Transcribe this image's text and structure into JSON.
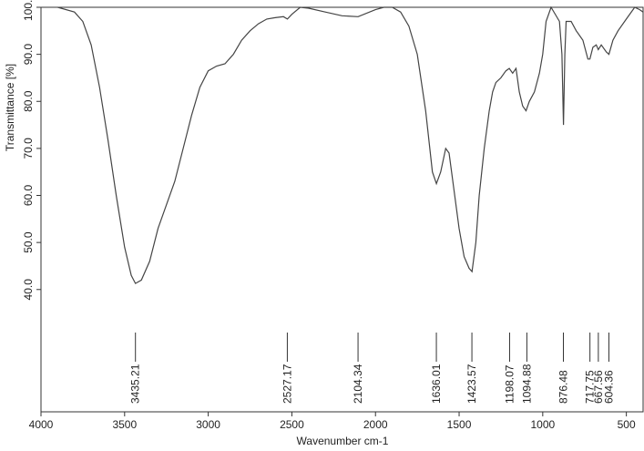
{
  "chart_data": {
    "type": "line",
    "xlabel": "Wavenumber cm-1",
    "ylabel": "Transmittance [%]",
    "xlim": [
      4000,
      400
    ],
    "ylim": [
      14,
      100
    ],
    "xticks": [
      4000,
      3500,
      3000,
      2500,
      2000,
      1500,
      1000,
      500
    ],
    "yticks": [
      {
        "value": 40,
        "label": "40.0"
      },
      {
        "value": 50,
        "label": "50.0"
      },
      {
        "value": 60,
        "label": "60.0"
      },
      {
        "value": 70,
        "label": "70.0"
      },
      {
        "value": 80,
        "label": "80.0"
      },
      {
        "value": 90,
        "label": "90.0"
      },
      {
        "value": 100,
        "label": "100.0"
      }
    ],
    "peaks": [
      3435.21,
      2527.17,
      2104.34,
      1636.01,
      1423.57,
      1198.07,
      1094.88,
      876.48,
      717.75,
      667.56,
      604.36
    ],
    "series": [
      {
        "color": "#444444",
        "x": [
          3900,
          3800,
          3750,
          3700,
          3650,
          3600,
          3550,
          3500,
          3460,
          3435,
          3400,
          3350,
          3300,
          3250,
          3200,
          3150,
          3100,
          3050,
          3000,
          2950,
          2900,
          2850,
          2800,
          2750,
          2700,
          2650,
          2600,
          2550,
          2527,
          2500,
          2450,
          2400,
          2300,
          2200,
          2104,
          2000,
          1950,
          1900,
          1850,
          1800,
          1750,
          1700,
          1660,
          1636,
          1610,
          1580,
          1560,
          1530,
          1500,
          1470,
          1440,
          1423,
          1400,
          1380,
          1350,
          1320,
          1300,
          1280,
          1250,
          1220,
          1200,
          1180,
          1160,
          1140,
          1120,
          1100,
          1080,
          1050,
          1020,
          1000,
          980,
          950,
          900,
          885,
          876,
          868,
          860,
          830,
          800,
          760,
          730,
          718,
          700,
          680,
          668,
          650,
          620,
          604,
          580,
          550,
          500,
          450,
          420,
          400
        ],
        "values": [
          100,
          99,
          97,
          92,
          83,
          72,
          60,
          49,
          43,
          41.3,
          42,
          46,
          53,
          58,
          63,
          70,
          77,
          83,
          86.5,
          87.5,
          88,
          90,
          93,
          95,
          96.5,
          97.5,
          97.8,
          98,
          97.5,
          98.5,
          100,
          99.8,
          99,
          98.2,
          98,
          99.5,
          100,
          100,
          99,
          96,
          90,
          78,
          65,
          62.5,
          65,
          70,
          69,
          61,
          53,
          47,
          44.5,
          43.8,
          50,
          60,
          70,
          78,
          82,
          84,
          85,
          86.5,
          87,
          86,
          87,
          82,
          79,
          78,
          80,
          82,
          86,
          90,
          97,
          100,
          97,
          90,
          75,
          90,
          97,
          97,
          95,
          93,
          89,
          89,
          91.5,
          92,
          91,
          92,
          90.5,
          90,
          93,
          95,
          97.5,
          100,
          99.5,
          99
        ]
      }
    ]
  }
}
